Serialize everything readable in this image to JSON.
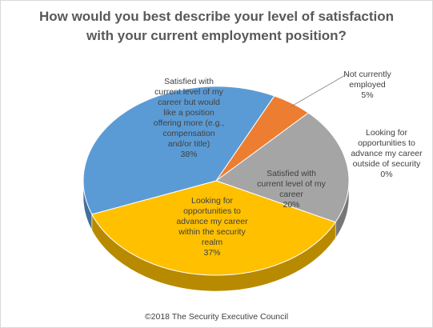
{
  "chart_data": {
    "type": "pie",
    "title_lines": [
      "How would you best describe your level of satisfaction",
      "with your current employment position?"
    ],
    "slices": [
      {
        "label_lines": [
          "Not currently",
          "employed"
        ],
        "percent_label": "5%",
        "value": 5,
        "color": "#ED7D31"
      },
      {
        "label_lines": [
          "Looking for",
          "opportunities to",
          "advance my career",
          "outside of security"
        ],
        "percent_label": "0%",
        "value": 0,
        "color": "#FFC000"
      },
      {
        "label_lines": [
          "Satisfied with",
          "current level of my",
          "career"
        ],
        "percent_label": "20%",
        "value": 20,
        "color": "#A5A5A5"
      },
      {
        "label_lines": [
          "Looking for",
          "opportunities to",
          "advance my career",
          "within the security",
          "realm"
        ],
        "percent_label": "37%",
        "value": 37,
        "color": "#FFC000"
      },
      {
        "label_lines": [
          "Satisfied with",
          "current level of my",
          "career but would",
          "like a position",
          "offering more (e.g.,",
          "compensation",
          "and/or title)"
        ],
        "percent_label": "38%",
        "value": 38,
        "color": "#5B9BD5"
      }
    ],
    "legend": "none"
  },
  "footer": "©2018 The Security Executive Council"
}
